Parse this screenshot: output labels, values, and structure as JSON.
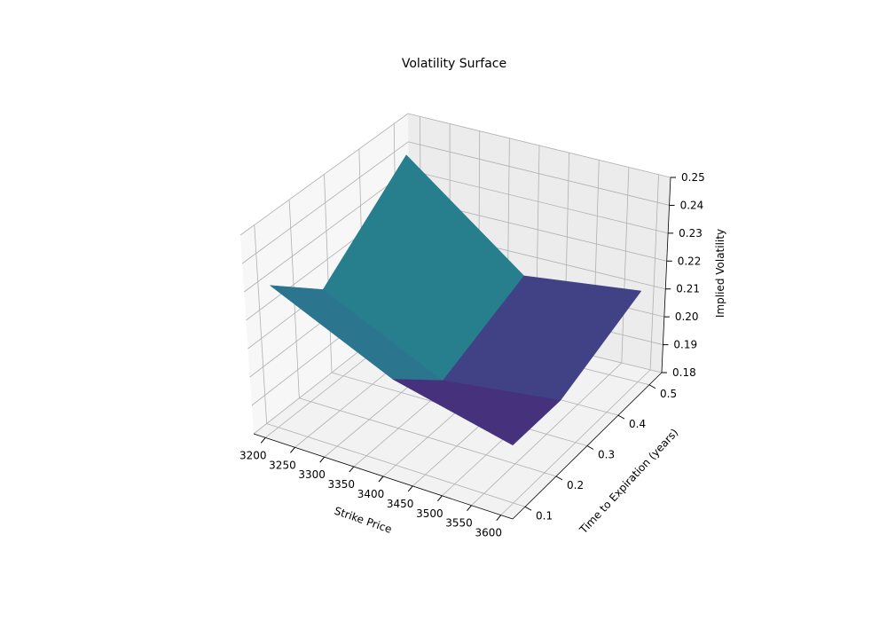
{
  "chart_data": {
    "type": "surface3d",
    "title": "Volatility Surface",
    "xlabel": "Strike Price",
    "ylabel": "Time to Expiration (years)",
    "zlabel": "Implied Volatility",
    "x_ticks": [
      "3200",
      "3250",
      "3300",
      "3350",
      "3400",
      "3450",
      "3500",
      "3550",
      "3600"
    ],
    "y_ticks": [
      "0.1",
      "0.2",
      "0.3",
      "0.4",
      "0.5"
    ],
    "z_ticks": [
      "0.18",
      "0.19",
      "0.20",
      "0.21",
      "0.22",
      "0.23",
      "0.24",
      "0.25"
    ],
    "xlim": [
      3180,
      3620
    ],
    "ylim": [
      0.06,
      0.54
    ],
    "zlim": [
      0.18,
      0.25
    ],
    "x": [
      3200,
      3400,
      3600
    ],
    "y": [
      0.1,
      0.25,
      0.5
    ],
    "z": [
      [
        0.23,
        0.21,
        0.2
      ],
      [
        0.215,
        0.195,
        0.2
      ],
      [
        0.24,
        0.2075,
        0.2125
      ]
    ],
    "colormap": "viridis",
    "grid": true
  }
}
